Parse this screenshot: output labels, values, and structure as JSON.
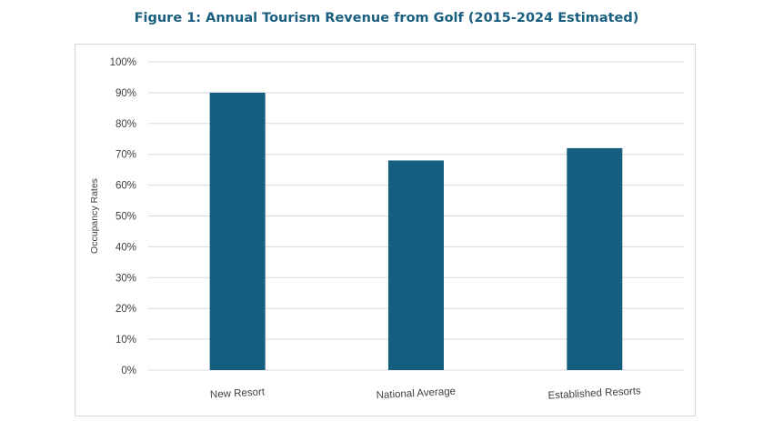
{
  "title": "Figure 1: Annual Tourism Revenue from Golf (2015-2024 Estimated)",
  "colors": {
    "bar": "#165e80",
    "title": "#1a5f80",
    "gridline": "#d9d9d9",
    "text": "#404040"
  },
  "chart_data": {
    "type": "bar",
    "categories": [
      "New Resort",
      "National Average",
      "Established Resorts"
    ],
    "values": [
      90,
      68,
      72
    ],
    "xlabel": "",
    "ylabel": "Occupancy Rates",
    "ylim": [
      0,
      100
    ],
    "yticks": [
      "0%",
      "10%",
      "20%",
      "30%",
      "40%",
      "50%",
      "60%",
      "70%",
      "80%",
      "90%",
      "100%"
    ],
    "grid": true,
    "legend": "none"
  }
}
